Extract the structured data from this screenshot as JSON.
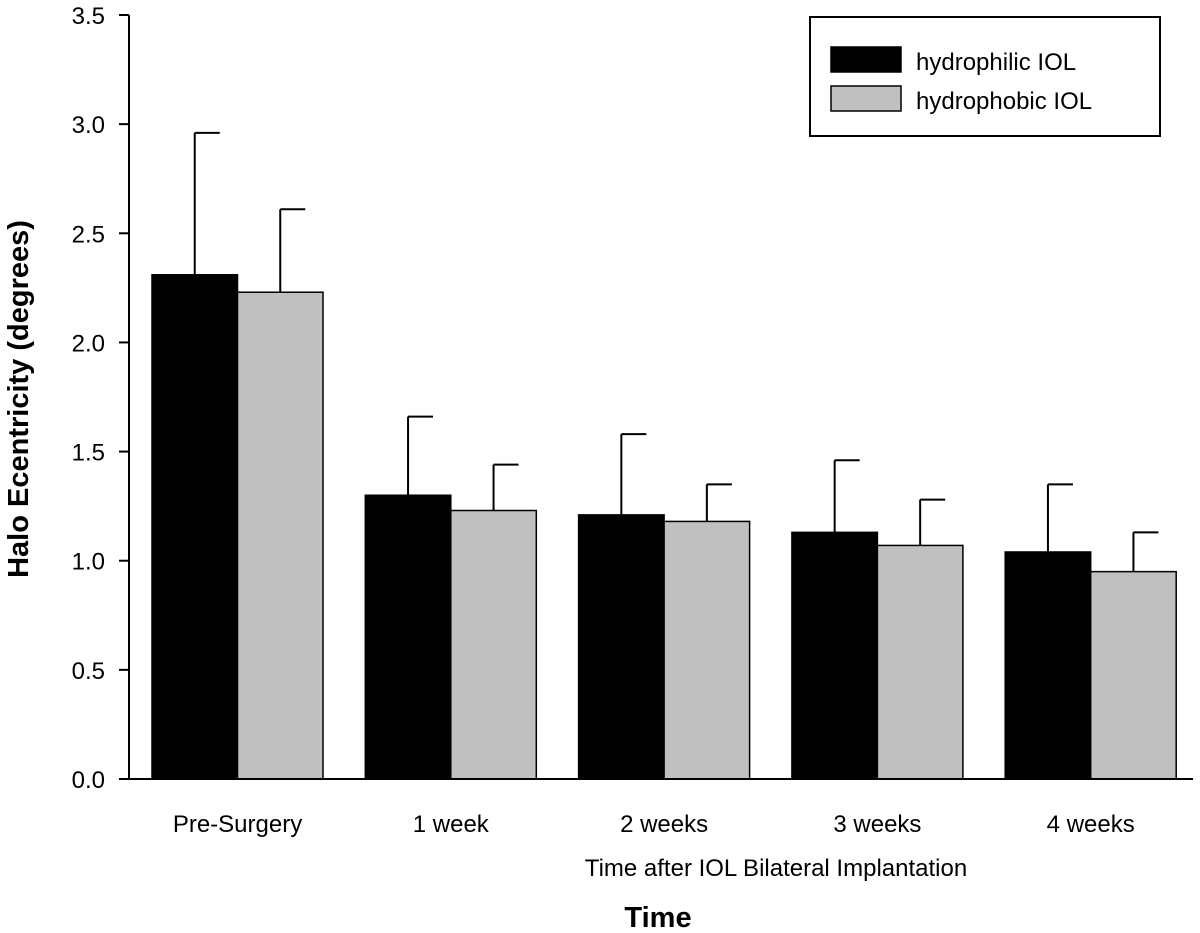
{
  "chart_data": {
    "type": "bar",
    "categories": [
      "Pre-Surgery",
      "1 week",
      "2 weeks",
      "3 weeks",
      "4 weeks"
    ],
    "series": [
      {
        "name": "hydrophilic IOL",
        "values": [
          2.31,
          1.3,
          1.21,
          1.13,
          1.04
        ],
        "errors": [
          0.65,
          0.36,
          0.37,
          0.33,
          0.31
        ],
        "color": "#000000"
      },
      {
        "name": "hydrophobic IOL",
        "values": [
          2.23,
          1.23,
          1.18,
          1.07,
          0.95
        ],
        "errors": [
          0.38,
          0.21,
          0.17,
          0.21,
          0.18
        ],
        "color": "#c0c0c0"
      }
    ],
    "title": "",
    "xlabel_sub": "Time after IOL Bilateral Implantation",
    "xlabel": "Time",
    "ylabel": "Halo Ecentricity (degrees)",
    "ylim": [
      0,
      3.5
    ],
    "yticks": [
      0.0,
      0.5,
      1.0,
      1.5,
      2.0,
      2.5,
      3.0,
      3.5
    ],
    "ytick_labels": [
      "0.0",
      "0.5",
      "1.0",
      "1.5",
      "2.0",
      "2.5",
      "3.0",
      "3.5"
    ],
    "grid": false,
    "legend_position": "top-right"
  }
}
